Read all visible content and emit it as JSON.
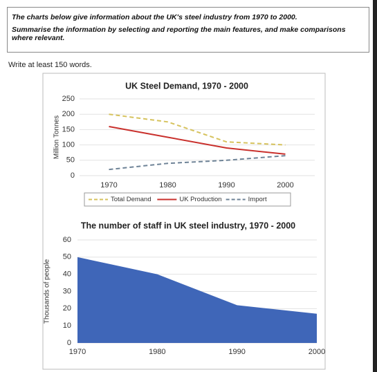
{
  "prompt": {
    "line1": "The charts below give information about the UK's steel industry from 1970 to 2000.",
    "line2": "Summarise the information by selecting and reporting the main features, and make comparisons where relevant.",
    "instruction": "Write at least 150 words."
  },
  "chart_data": [
    {
      "type": "line",
      "title": "UK Steel Demand, 1970 - 2000",
      "y_label": "Million Tonnes",
      "categories": [
        "1970",
        "1980",
        "1990",
        "2000"
      ],
      "series": [
        {
          "name": "Total Demand",
          "color": "#d6c25c",
          "style": "dashed",
          "values": [
            200,
            175,
            110,
            100
          ]
        },
        {
          "name": "UK Production",
          "color": "#c9302c",
          "style": "solid",
          "values": [
            160,
            125,
            90,
            70
          ]
        },
        {
          "name": "Import",
          "color": "#6d8296",
          "style": "dashed",
          "values": [
            20,
            40,
            50,
            65
          ]
        }
      ],
      "ylim": [
        0,
        250
      ],
      "yticks": [
        0,
        50,
        100,
        150,
        200,
        250
      ],
      "grid": true,
      "legend": "bottom"
    },
    {
      "type": "area",
      "title": "The number of staff in UK steel industry, 1970 - 2000",
      "y_label": "Thousands of people",
      "x": [
        1970,
        1980,
        1990,
        2000
      ],
      "values": [
        50,
        40,
        22,
        17
      ],
      "color": "#3f66b8",
      "xlim": [
        1970,
        2000
      ],
      "xticks": [
        1970,
        1980,
        1990,
        2000
      ],
      "ylim": [
        0,
        60
      ],
      "yticks": [
        0,
        10,
        20,
        30,
        40,
        50,
        60
      ],
      "grid": true
    }
  ]
}
